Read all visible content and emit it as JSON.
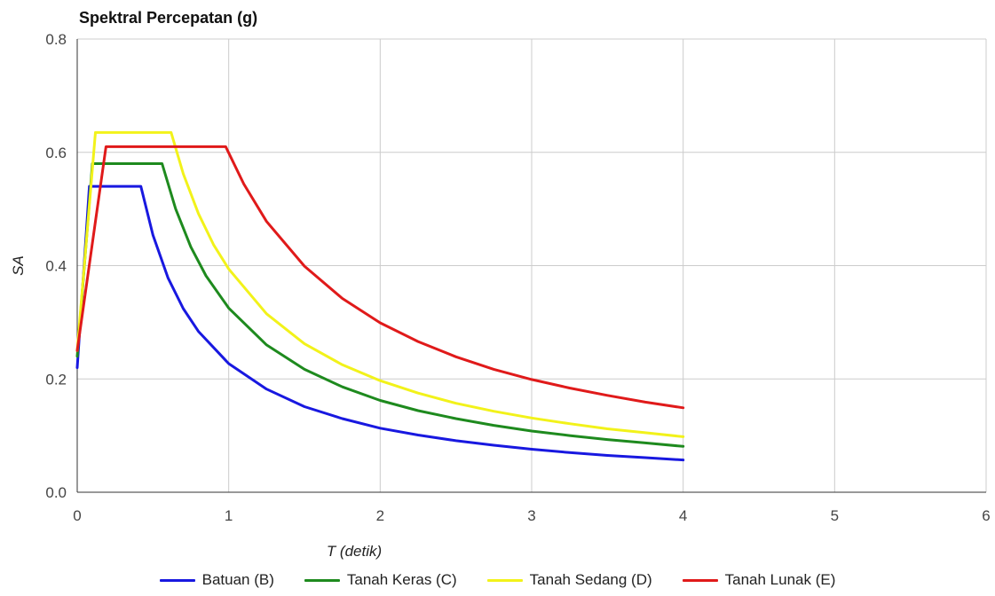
{
  "chart_data": {
    "type": "line",
    "title": "Spektral Percepatan (g)",
    "xlabel": "T (detik)",
    "ylabel": "SA",
    "xlim": [
      0,
      6
    ],
    "ylim": [
      0,
      0.8
    ],
    "xticks": [
      0,
      1,
      2,
      3,
      4,
      5,
      6
    ],
    "yticks": [
      "0.0",
      "0.2",
      "0.4",
      "0.6",
      "0.8"
    ],
    "grid": true,
    "legend_position": "bottom",
    "series": [
      {
        "name": "Batuan (B)",
        "color": "#1818e0",
        "x": [
          0,
          0.08,
          0.42,
          0.5,
          0.6,
          0.7,
          0.8,
          1.0,
          1.25,
          1.5,
          1.75,
          2.0,
          2.25,
          2.5,
          2.75,
          3.0,
          3.25,
          3.5,
          3.75,
          4.0
        ],
        "y": [
          0.22,
          0.54,
          0.54,
          0.454,
          0.378,
          0.324,
          0.284,
          0.227,
          0.182,
          0.151,
          0.13,
          0.113,
          0.101,
          0.091,
          0.083,
          0.076,
          0.07,
          0.065,
          0.061,
          0.057
        ]
      },
      {
        "name": "Tanah Keras (C)",
        "color": "#1e8a1e",
        "x": [
          0,
          0.1,
          0.56,
          0.65,
          0.75,
          0.85,
          1.0,
          1.25,
          1.5,
          1.75,
          2.0,
          2.25,
          2.5,
          2.75,
          3.0,
          3.25,
          3.5,
          3.75,
          4.0
        ],
        "y": [
          0.24,
          0.58,
          0.58,
          0.5,
          0.433,
          0.382,
          0.325,
          0.26,
          0.217,
          0.186,
          0.162,
          0.144,
          0.13,
          0.118,
          0.108,
          0.1,
          0.093,
          0.087,
          0.081
        ]
      },
      {
        "name": "Tanah Sedang (D)",
        "color": "#f2f21a",
        "x": [
          0,
          0.12,
          0.62,
          0.7,
          0.8,
          0.9,
          1.0,
          1.25,
          1.5,
          1.75,
          2.0,
          2.25,
          2.5,
          2.75,
          3.0,
          3.25,
          3.5,
          3.75,
          4.0
        ],
        "y": [
          0.25,
          0.635,
          0.635,
          0.562,
          0.492,
          0.437,
          0.394,
          0.315,
          0.262,
          0.225,
          0.197,
          0.175,
          0.157,
          0.143,
          0.131,
          0.121,
          0.112,
          0.105,
          0.098
        ]
      },
      {
        "name": "Tanah Lunak (E)",
        "color": "#e01a1a",
        "x": [
          0,
          0.19,
          0.98,
          1.1,
          1.25,
          1.5,
          1.75,
          2.0,
          2.25,
          2.5,
          2.75,
          3.0,
          3.25,
          3.5,
          3.75,
          4.0
        ],
        "y": [
          0.25,
          0.61,
          0.61,
          0.544,
          0.478,
          0.399,
          0.342,
          0.299,
          0.266,
          0.239,
          0.217,
          0.199,
          0.184,
          0.171,
          0.159,
          0.149
        ]
      }
    ]
  }
}
